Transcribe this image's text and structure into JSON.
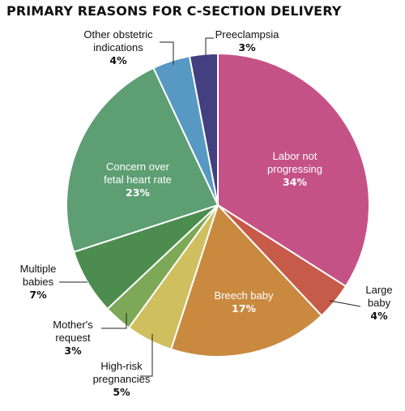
{
  "chart_data": {
    "type": "pie",
    "title": "PRIMARY REASONS FOR C-SECTION DELIVERY",
    "slices": [
      {
        "label": [
          "Labor not",
          "progressing"
        ],
        "value_label": "34%",
        "value": 34,
        "color": "#c55287"
      },
      {
        "label": [
          "Large",
          "baby"
        ],
        "value_label": "4%",
        "value": 4,
        "color": "#c65b49"
      },
      {
        "label": [
          "Breech baby"
        ],
        "value_label": "17%",
        "value": 17,
        "color": "#c98a40"
      },
      {
        "label": [
          "High-risk",
          "pregnancies"
        ],
        "value_label": "5%",
        "value": 5,
        "color": "#d0bf5f"
      },
      {
        "label": [
          "Mother's",
          "request"
        ],
        "value_label": "3%",
        "value": 3,
        "color": "#7da857"
      },
      {
        "label": [
          "Multiple",
          "babies"
        ],
        "value_label": "7%",
        "value": 7,
        "color": "#4c8d4f"
      },
      {
        "label": [
          "Concern over",
          "fetal heart rate"
        ],
        "value_label": "23%",
        "value": 23,
        "color": "#5d9e73"
      },
      {
        "label": [
          "Other obstetric",
          "indications"
        ],
        "value_label": "4%",
        "value": 4,
        "color": "#5799c2"
      },
      {
        "label": [
          "Preeclampsia"
        ],
        "value_label": "3%",
        "value": 3,
        "color": "#433f80"
      }
    ]
  }
}
